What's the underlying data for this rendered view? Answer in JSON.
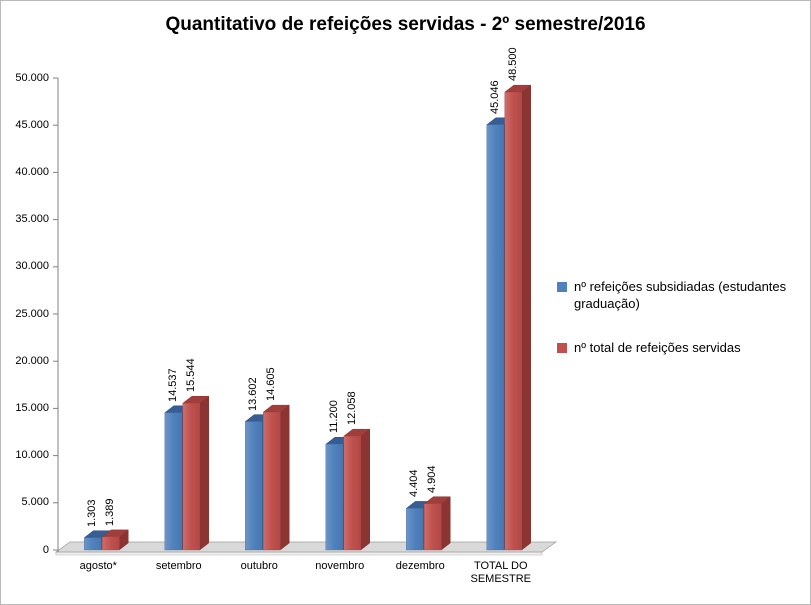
{
  "title": "Quantitativo de refeições servidas - 2º semestre/2016",
  "chart_data": {
    "type": "bar",
    "style": "3d-clustered-column",
    "title": "Quantitativo de refeições servidas - 2º semestre/2016",
    "categories": [
      "agosto*",
      "setembro",
      "outubro",
      "novembro",
      "dezembro",
      "TOTAL DO SEMESTRE"
    ],
    "series": [
      {
        "name": "nº refeições subsidiadas (estudantes graduação)",
        "color": "#4F81BD",
        "color_light": "#6E94C6",
        "color_shade": "#4878B0",
        "color_top": "#365E94",
        "color_side": "#2C4D75",
        "values": [
          1303,
          14537,
          13602,
          11200,
          4404,
          45046
        ],
        "labels": [
          "1.303",
          "14.537",
          "13.602",
          "11.200",
          "4.404",
          "45.046"
        ]
      },
      {
        "name": "nº total de refeições servidas",
        "color": "#C0504D",
        "color_light": "#CC6E6B",
        "color_shade": "#B04A47",
        "color_top": "#A03E3B",
        "color_side": "#8B3432",
        "values": [
          1389,
          15544,
          14605,
          12058,
          4904,
          48500
        ],
        "labels": [
          "1.389",
          "15.544",
          "14.605",
          "12.058",
          "4.904",
          "48.500"
        ]
      }
    ],
    "ylim": [
      0,
      50000
    ],
    "ytick_step": 5000,
    "ytick_labels": [
      "0",
      "5.000",
      "10.000",
      "15.000",
      "20.000",
      "25.000",
      "30.000",
      "35.000",
      "40.000",
      "45.000",
      "50.000"
    ],
    "legend_position": "right",
    "grid": false,
    "floor_color": "#D9D9D9",
    "axis_color": "#808080"
  }
}
